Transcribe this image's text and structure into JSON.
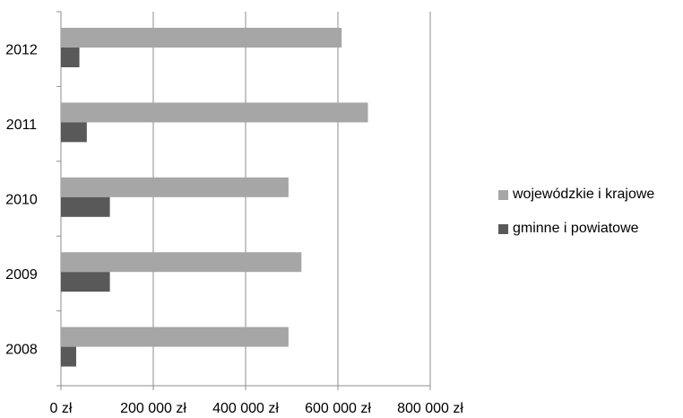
{
  "chart_data": {
    "type": "bar",
    "orientation": "horizontal",
    "categories": [
      "2012",
      "2011",
      "2010",
      "2009",
      "2008"
    ],
    "series": [
      {
        "name": "wojewódzkie i krajowe",
        "color": "#a6a6a6",
        "values": [
          608000,
          665000,
          493000,
          521000,
          493000
        ]
      },
      {
        "name": "gminne i powiatowe",
        "color": "#595959",
        "values": [
          40000,
          56000,
          106000,
          106000,
          33000
        ]
      }
    ],
    "x_ticks": [
      "0 zł",
      "200 000 zł",
      "400 000 zł",
      "600 000 zł",
      "800 000 zł"
    ],
    "x_tick_values": [
      0,
      200000,
      400000,
      600000,
      800000
    ],
    "xlim": [
      0,
      800000
    ],
    "grid": "vertical",
    "legend_position": "right"
  }
}
